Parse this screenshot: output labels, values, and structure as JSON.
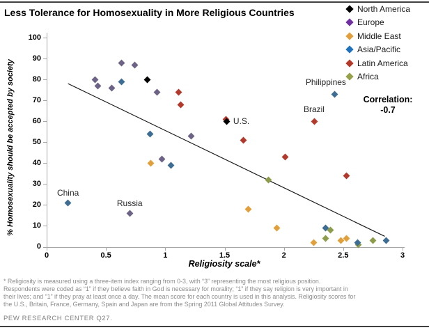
{
  "title": "Less Tolerance for Homosexuality in More Religious Countries",
  "legend": {
    "items": [
      {
        "label": "North America",
        "color": "#000000"
      },
      {
        "label": "Europe",
        "color": "#7030a0"
      },
      {
        "label": "Middle East",
        "color": "#e2a03c"
      },
      {
        "label": "Asia/Pacific",
        "color": "#1f72bc"
      },
      {
        "label": "Latin America",
        "color": "#b5392a"
      },
      {
        "label": "Africa",
        "color": "#97a14b"
      }
    ]
  },
  "correlation": {
    "label": "Correlation:",
    "value": "-0.7"
  },
  "chart_data": {
    "type": "scatter",
    "title": "Less Tolerance for Homosexuality in More Religious Countries",
    "xlabel": "Religiosity scale*",
    "ylabel": "% Homosexuality should be accepted by society",
    "xlim": [
      0,
      3
    ],
    "ylim": [
      0,
      100
    ],
    "x_ticks": [
      0,
      0.5,
      1,
      1.5,
      2,
      2.5,
      3
    ],
    "x_tick_labels": [
      "0",
      "0.5",
      "1",
      "1.5",
      "2",
      "2.5",
      "3"
    ],
    "y_ticks": [
      0,
      10,
      20,
      30,
      40,
      50,
      60,
      70,
      80,
      90,
      100
    ],
    "grid": false,
    "legend_position": "top-right",
    "annotation": "Correlation: -0.7",
    "trendline": {
      "x1": 0.18,
      "y1": 78,
      "x2": 2.85,
      "y2": 5,
      "color": "#1a1a1a"
    },
    "series": [
      {
        "name": "North America",
        "color": "#000000",
        "points": [
          {
            "x": 0.85,
            "y": 80
          },
          {
            "x": 1.52,
            "y": 60,
            "label": "U.S."
          }
        ]
      },
      {
        "name": "Europe",
        "color": "#6c6387",
        "points": [
          {
            "x": 0.41,
            "y": 80
          },
          {
            "x": 0.43,
            "y": 77
          },
          {
            "x": 0.55,
            "y": 76
          },
          {
            "x": 0.63,
            "y": 88
          },
          {
            "x": 0.74,
            "y": 87
          },
          {
            "x": 0.93,
            "y": 74
          },
          {
            "x": 0.97,
            "y": 42
          },
          {
            "x": 1.22,
            "y": 53
          },
          {
            "x": 0.7,
            "y": 16,
            "label": "Russia"
          }
        ]
      },
      {
        "name": "Middle East",
        "color": "#e2a03c",
        "points": [
          {
            "x": 0.88,
            "y": 40
          },
          {
            "x": 1.7,
            "y": 18
          },
          {
            "x": 1.94,
            "y": 9
          },
          {
            "x": 2.25,
            "y": 2
          },
          {
            "x": 2.48,
            "y": 3
          },
          {
            "x": 2.53,
            "y": 4
          }
        ]
      },
      {
        "name": "Asia/Pacific",
        "color": "#3d6d92",
        "points": [
          {
            "x": 0.18,
            "y": 21,
            "label": "China"
          },
          {
            "x": 0.63,
            "y": 79
          },
          {
            "x": 0.87,
            "y": 54
          },
          {
            "x": 1.05,
            "y": 39
          },
          {
            "x": 2.35,
            "y": 9
          },
          {
            "x": 2.43,
            "y": 73,
            "label": "Philippines"
          },
          {
            "x": 2.62,
            "y": 2
          },
          {
            "x": 2.86,
            "y": 3
          }
        ]
      },
      {
        "name": "Latin America",
        "color": "#b23a2c",
        "points": [
          {
            "x": 1.11,
            "y": 74
          },
          {
            "x": 1.13,
            "y": 68
          },
          {
            "x": 1.51,
            "y": 61
          },
          {
            "x": 1.66,
            "y": 51
          },
          {
            "x": 2.01,
            "y": 43
          },
          {
            "x": 2.26,
            "y": 60,
            "label": "Brazil"
          },
          {
            "x": 2.53,
            "y": 34
          }
        ]
      },
      {
        "name": "Africa",
        "color": "#8d9c4b",
        "points": [
          {
            "x": 1.87,
            "y": 32
          },
          {
            "x": 2.35,
            "y": 4
          },
          {
            "x": 2.39,
            "y": 8
          },
          {
            "x": 2.63,
            "y": 1
          },
          {
            "x": 2.75,
            "y": 3
          }
        ]
      }
    ]
  },
  "footnote": {
    "lines": [
      "* Religiosity is measured using a three-item index ranging from 0-3, with “3” representing the most religious position.",
      "Respondents were coded as “1” if they believe faith in God is necessary for morality; “1” if they say religion is very important in",
      "their lives; and “1” if they pray at least once a day. The mean score for each country is used in this analysis. Religiosity scores for",
      "the U.S., Britain, France, Germany, Spain and Japan are from the Spring 2011 Global Attitudes Survey."
    ]
  },
  "source": "PEW RESEARCH CENTER Q27."
}
